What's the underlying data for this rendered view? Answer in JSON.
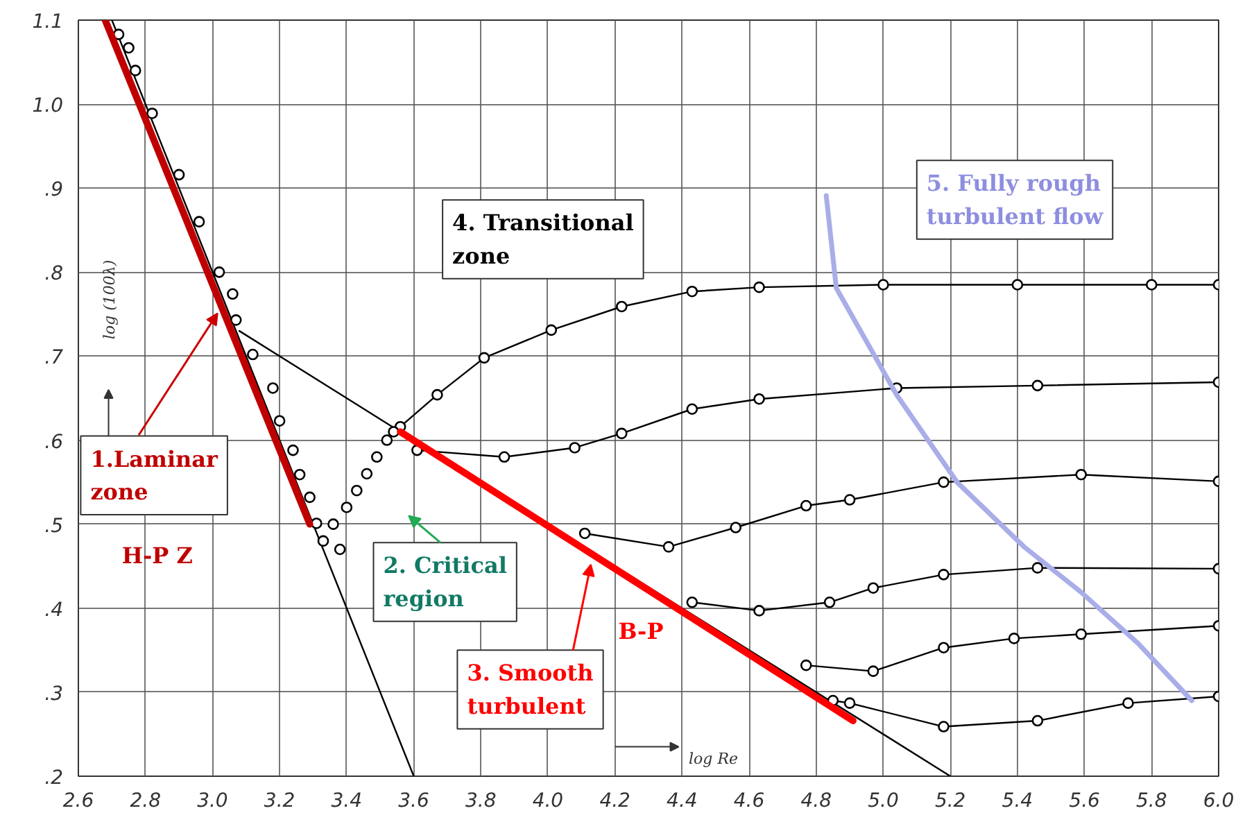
{
  "chart_data": {
    "type": "line",
    "xlabel": "log Re",
    "ylabel": "log (100λ)",
    "xlim": [
      2.6,
      6.0
    ],
    "ylim": [
      0.2,
      1.1
    ],
    "xticks": [
      2.6,
      2.8,
      {
        "value": 3.0,
        "label": "3.0"
      },
      3.2,
      3.4,
      3.6,
      3.8,
      {
        "value": 4.0,
        "label": "4.0"
      },
      4.2,
      4.4,
      4.6,
      4.8,
      {
        "value": 5.0,
        "label": "5.0"
      },
      5.2,
      5.4,
      5.6,
      5.8,
      {
        "value": 6.0,
        "label": "6.0"
      }
    ],
    "yticks": [
      {
        "value": 0.2,
        "label": ".2"
      },
      {
        "value": 0.3,
        "label": ".3"
      },
      {
        "value": 0.4,
        "label": ".4"
      },
      {
        "value": 0.5,
        "label": ".5"
      },
      {
        "value": 0.6,
        "label": ".6"
      },
      {
        "value": 0.7,
        "label": ".7"
      },
      {
        "value": 0.8,
        "label": ".8"
      },
      {
        "value": 0.9,
        "label": ".9"
      },
      {
        "value": 1.0,
        "label": "1.0"
      },
      1.1
    ],
    "grid": true,
    "line_style": "solid",
    "series": [
      {
        "type": "line",
        "color": "#000000",
        "x": [
          2.7,
          3.6
        ],
        "values": [
          1.1,
          0.2
        ]
      },
      {
        "type": "line",
        "color": "#000000",
        "x": [
          3.08,
          3.56
        ],
        "values": [
          0.73,
          0.61
        ]
      },
      {
        "type": "line",
        "color": "#000000",
        "x": [
          3.56,
          5.2
        ],
        "values": [
          0.61,
          0.2
        ]
      },
      {
        "type": "line",
        "color": "#000000",
        "marker": "circle",
        "x": [
          3.56,
          3.67,
          3.81,
          4.01,
          4.22,
          4.43,
          4.63,
          5.0,
          5.4,
          5.8,
          6.0
        ],
        "values": [
          0.616,
          0.654,
          0.698,
          0.731,
          0.759,
          0.777,
          0.782,
          0.785,
          0.785,
          0.785,
          0.785
        ]
      },
      {
        "type": "line",
        "color": "#000000",
        "marker": "circle",
        "x": [
          3.61,
          3.87,
          4.08,
          4.22,
          4.43,
          4.63,
          5.04,
          5.46,
          6.0
        ],
        "values": [
          0.588,
          0.58,
          0.591,
          0.608,
          0.637,
          0.649,
          0.662,
          0.665,
          0.669
        ]
      },
      {
        "type": "line",
        "color": "#000000",
        "marker": "circle",
        "x": [
          4.11,
          4.36,
          4.56,
          4.77,
          4.9,
          5.18,
          5.59,
          6.0
        ],
        "values": [
          0.489,
          0.473,
          0.496,
          0.522,
          0.529,
          0.55,
          0.559,
          0.551
        ]
      },
      {
        "type": "line",
        "color": "#000000",
        "marker": "circle",
        "x": [
          4.43,
          4.63,
          4.84,
          4.97,
          5.18,
          5.46,
          6.0
        ],
        "values": [
          0.407,
          0.397,
          0.407,
          0.424,
          0.44,
          0.448,
          0.447
        ]
      },
      {
        "type": "line",
        "color": "#000000",
        "marker": "circle",
        "x": [
          4.77,
          4.97,
          5.18,
          5.39,
          5.59,
          6.0
        ],
        "values": [
          0.332,
          0.325,
          0.353,
          0.364,
          0.369,
          0.379
        ]
      },
      {
        "type": "line",
        "color": "#000000",
        "marker": "circle",
        "x": [
          4.85,
          4.9,
          5.18,
          5.46,
          5.73,
          6.0
        ],
        "values": [
          0.29,
          0.287,
          0.259,
          0.266,
          0.287,
          0.295
        ]
      },
      {
        "type": "scatter",
        "color": "#000000",
        "marker": "circle",
        "x": [
          2.72,
          2.75,
          2.77,
          2.82,
          2.9,
          2.96,
          3.02,
          3.06,
          3.07,
          3.12,
          3.18,
          3.2,
          3.24,
          3.26,
          3.29,
          3.31
        ],
        "values": [
          1.083,
          1.067,
          1.04,
          0.989,
          0.916,
          0.86,
          0.8,
          0.774,
          0.743,
          0.702,
          0.662,
          0.623,
          0.588,
          0.559,
          0.532,
          0.501
        ]
      },
      {
        "type": "scatter",
        "color": "#000000",
        "marker": "circle",
        "x": [
          3.33,
          3.36,
          3.38,
          3.4,
          3.43,
          3.46,
          3.49,
          3.52,
          3.54
        ],
        "values": [
          0.48,
          0.5,
          0.47,
          0.52,
          0.54,
          0.56,
          0.58,
          0.6,
          0.61
        ]
      },
      {
        "type": "line",
        "color": "#c00000",
        "x": [
          2.68,
          3.29
        ],
        "values": [
          1.1,
          0.5
        ]
      },
      {
        "type": "line",
        "color": "#ff0000",
        "x": [
          3.56,
          4.91
        ],
        "values": [
          0.61,
          0.266
        ]
      },
      {
        "type": "line",
        "color": "#a9ade8",
        "x": [
          4.83,
          4.86,
          5.04,
          5.22,
          5.42,
          5.59,
          5.76,
          5.92
        ],
        "values": [
          0.891,
          0.781,
          0.654,
          0.55,
          0.473,
          0.419,
          0.358,
          0.29
        ]
      }
    ],
    "annotations": [
      {
        "text": "1.Laminar\n  zone",
        "x": 3.015,
        "y": 0.751
      },
      "H-P Z",
      "2. Critical\nregion",
      {
        "text": "3. Smooth\nturbulent",
        "x": 4.128,
        "y": 0.452
      },
      "B-P",
      "4. Transitional\nzone",
      "5. Fully rough\nturbulent flow"
    ]
  }
}
